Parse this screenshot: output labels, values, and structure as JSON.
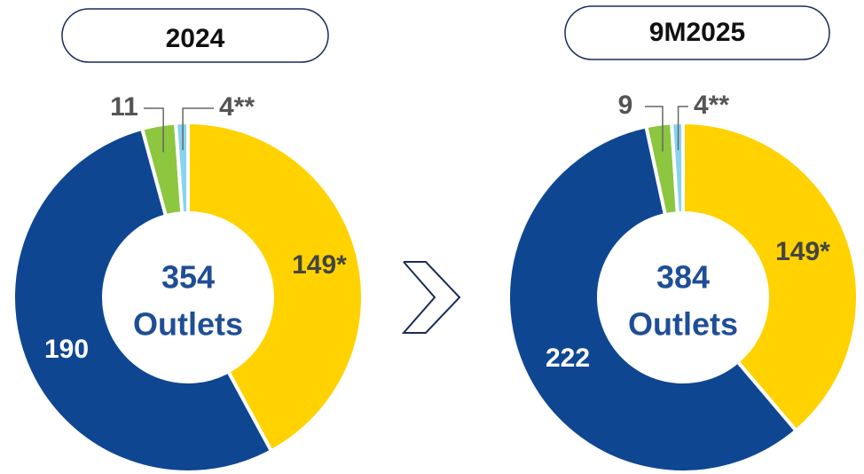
{
  "chart_data": [
    {
      "type": "donut",
      "title": "2024",
      "values": [
        149,
        190,
        11,
        4
      ],
      "value_labels": [
        "149*",
        "190",
        "11",
        "4**"
      ],
      "colors": [
        "#FFD200",
        "#0F4692",
        "#8DC63F",
        "#87D3F0"
      ],
      "total": 354,
      "center_text": "Outlets"
    },
    {
      "type": "donut",
      "title": "9M2025",
      "values": [
        149,
        222,
        9,
        4
      ],
      "value_labels": [
        "149*",
        "222",
        "9",
        "4**"
      ],
      "colors": [
        "#FFD200",
        "#0F4692",
        "#8DC63F",
        "#87D3F0"
      ],
      "total": 384,
      "center_text": "Outlets"
    }
  ]
}
